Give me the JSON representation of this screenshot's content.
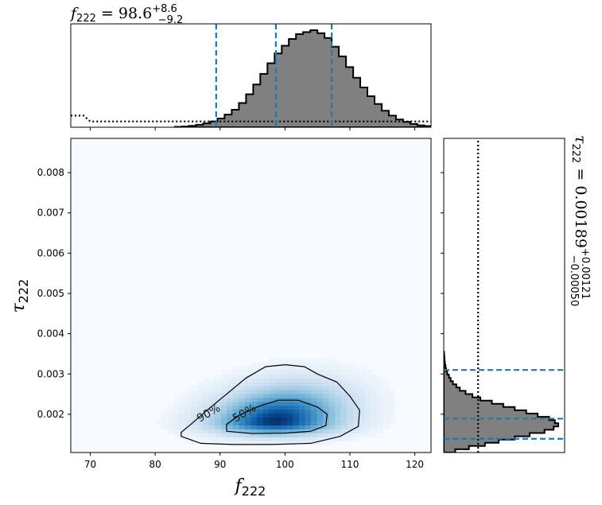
{
  "chart_data": {
    "type": "corner",
    "joint": {
      "type": "heatmap",
      "xlabel": "f",
      "xlabel_sub": "222",
      "ylabel": "τ",
      "ylabel_sub": "222",
      "xlim": [
        67,
        122.5
      ],
      "ylim": [
        0.00105,
        0.00885
      ],
      "xticks": [
        70,
        80,
        90,
        100,
        110,
        120
      ],
      "yticks": [
        0.002,
        0.003,
        0.004,
        0.005,
        0.006,
        0.007,
        0.008
      ],
      "ytick_labels": [
        "0.002",
        "0.003",
        "0.004",
        "0.005",
        "0.006",
        "0.007",
        "0.008"
      ],
      "colormap": "Blues",
      "density_peak": {
        "x": 98.5,
        "y": 0.00182
      },
      "contours": [
        {
          "label": "90%",
          "label_pos": [
            88.5,
            0.00195
          ],
          "points": [
            [
              84.0,
              0.00145
            ],
            [
              87.0,
              0.00128
            ],
            [
              92.0,
              0.00125
            ],
            [
              98.0,
              0.00125
            ],
            [
              104.0,
              0.00128
            ],
            [
              108.5,
              0.00145
            ],
            [
              111.3,
              0.0017
            ],
            [
              111.5,
              0.0021
            ],
            [
              110.0,
              0.00245
            ],
            [
              108.0,
              0.0028
            ],
            [
              105.0,
              0.003
            ],
            [
              103.0,
              0.00318
            ],
            [
              100.0,
              0.00323
            ],
            [
              97.0,
              0.00318
            ],
            [
              94.0,
              0.0029
            ],
            [
              91.0,
              0.0025
            ],
            [
              88.0,
              0.0021
            ],
            [
              85.5,
              0.00175
            ],
            [
              84.0,
              0.00155
            ]
          ]
        },
        {
          "label": "50%",
          "label_pos": [
            94.0,
            0.00195
          ],
          "points": [
            [
              91.0,
              0.00158
            ],
            [
              95.0,
              0.00152
            ],
            [
              100.0,
              0.00153
            ],
            [
              104.0,
              0.00158
            ],
            [
              106.3,
              0.00172
            ],
            [
              106.5,
              0.002
            ],
            [
              105.0,
              0.00218
            ],
            [
              102.0,
              0.00235
            ],
            [
              99.0,
              0.00235
            ],
            [
              96.0,
              0.0022
            ],
            [
              93.0,
              0.00198
            ],
            [
              91.0,
              0.00175
            ]
          ]
        }
      ]
    },
    "marginal_x": {
      "type": "histogram",
      "bin_edges_start": 83,
      "bin_width": 1.1,
      "values": [
        0.004,
        0.008,
        0.015,
        0.025,
        0.04,
        0.06,
        0.09,
        0.13,
        0.18,
        0.25,
        0.34,
        0.44,
        0.55,
        0.66,
        0.76,
        0.84,
        0.91,
        0.96,
        0.98,
        1.0,
        0.97,
        0.92,
        0.83,
        0.73,
        0.62,
        0.51,
        0.41,
        0.32,
        0.24,
        0.17,
        0.12,
        0.08,
        0.055,
        0.035,
        0.02,
        0.012,
        0.007
      ],
      "prior": {
        "x": [
          67,
          69,
          70,
          72,
          122.5
        ],
        "y": [
          0.12,
          0.12,
          0.06,
          0.06,
          0.06
        ]
      },
      "quantile_lines": [
        89.4,
        98.6,
        107.2
      ],
      "title_prefix": "f",
      "title_sub": "222",
      "title_value": " = 98.6",
      "title_plus": "+8.6",
      "title_minus": "−9.2"
    },
    "marginal_y": {
      "type": "histogram",
      "values": [
        0.003,
        0.005,
        0.007,
        0.01,
        0.015,
        0.02,
        0.03,
        0.045,
        0.06,
        0.08,
        0.11,
        0.14,
        0.19,
        0.25,
        0.32,
        0.42,
        0.52,
        0.62,
        0.72,
        0.82,
        0.92,
        0.97,
        1.0,
        0.96,
        0.88,
        0.75,
        0.62,
        0.48,
        0.36,
        0.22,
        0.1
      ],
      "prior": {
        "x": [
          0.3,
          0.3,
          0.3
        ],
        "y": [
          0.00105,
          0.0025,
          0.00885
        ]
      },
      "quantile_lines": [
        0.00139,
        0.00189,
        0.0031
      ],
      "title_prefix": "τ",
      "title_sub": "222",
      "title_value": " = 0.00189",
      "title_plus": "+0.00121",
      "title_minus": "−0.00050"
    },
    "colors": {
      "hist_fill": "#808080",
      "hist_edge": "#000000",
      "quantile": "#1f77b4",
      "contour": "#000000",
      "cmap_low": "#f7fbff",
      "cmap_high": "#08306b"
    }
  }
}
